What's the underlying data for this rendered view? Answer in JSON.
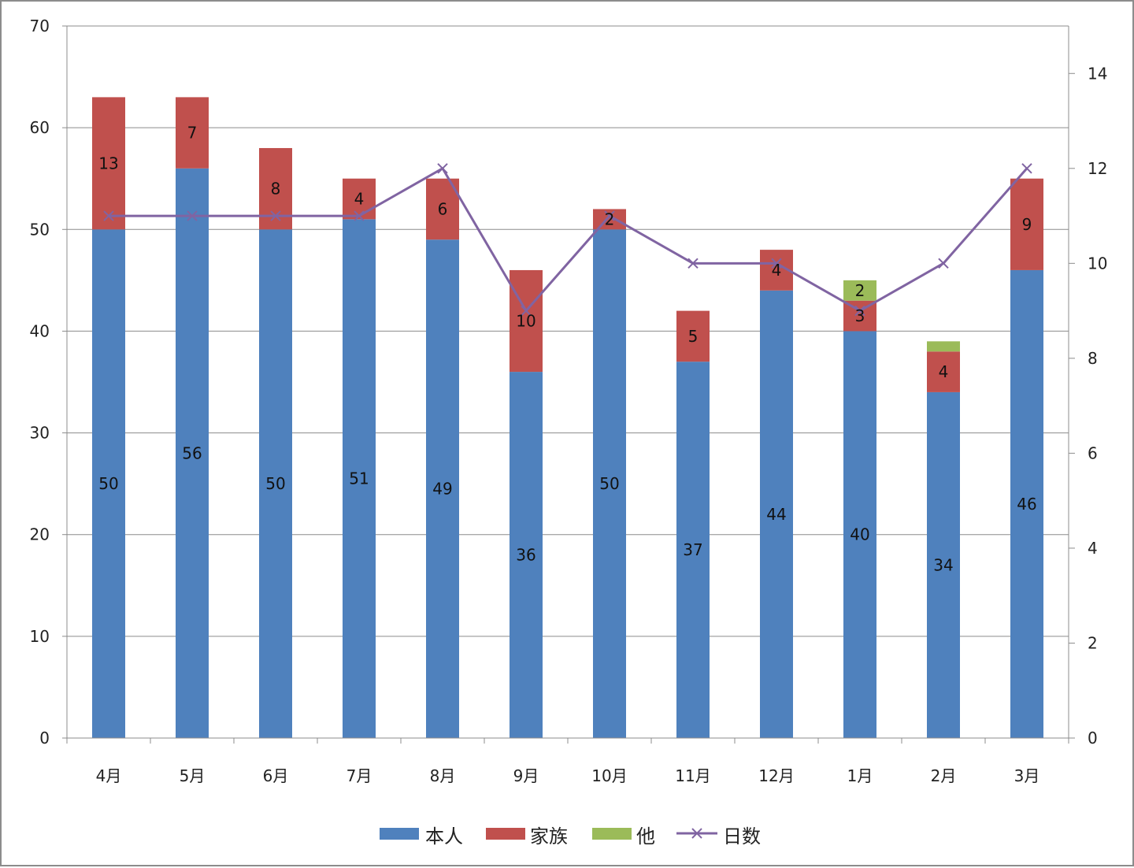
{
  "chart_data": {
    "type": "bar",
    "stacked": true,
    "categories": [
      "4月",
      "5月",
      "6月",
      "7月",
      "8月",
      "9月",
      "10月",
      "11月",
      "12月",
      "1月",
      "2月",
      "3月"
    ],
    "series": [
      {
        "name": "本人",
        "kind": "bar",
        "axis": "left",
        "color": "#4f81bd",
        "values": [
          50,
          56,
          50,
          51,
          49,
          36,
          50,
          37,
          44,
          40,
          34,
          46
        ],
        "labels": [
          "50",
          "56",
          "50",
          "51",
          "49",
          "36",
          "50",
          "37",
          "44",
          "40",
          "34",
          "46"
        ]
      },
      {
        "name": "家族",
        "kind": "bar",
        "axis": "left",
        "color": "#c0504d",
        "values": [
          13,
          7,
          8,
          4,
          6,
          10,
          2,
          5,
          4,
          3,
          4,
          9
        ],
        "labels": [
          "13",
          "7",
          "8",
          "4",
          "6",
          "10",
          "2",
          "5",
          "4",
          "3",
          "4",
          "9"
        ]
      },
      {
        "name": "他",
        "kind": "bar",
        "axis": "left",
        "color": "#9bbb59",
        "values": [
          0,
          0,
          0,
          0,
          0,
          0,
          0,
          0,
          0,
          2,
          1,
          0
        ],
        "labels": [
          "",
          "",
          "",
          "",
          "",
          "",
          "",
          "",
          "",
          "2",
          "",
          ""
        ]
      },
      {
        "name": "日数",
        "kind": "line",
        "axis": "right",
        "color": "#8064a2",
        "marker": "x",
        "values": [
          11,
          11,
          11,
          11,
          12,
          9,
          11,
          10,
          10,
          9,
          10,
          12
        ]
      }
    ],
    "y_left": {
      "min": 0,
      "max": 70,
      "ticks": [
        0,
        10,
        20,
        30,
        40,
        50,
        60,
        70
      ],
      "tick_labels": [
        "0",
        "10",
        "20",
        "30",
        "40",
        "50",
        "60",
        "70"
      ]
    },
    "y_right": {
      "min": 0,
      "max": 15,
      "ticks": [
        0,
        2,
        4,
        6,
        8,
        10,
        12,
        14
      ],
      "tick_labels": [
        "0",
        "2",
        "4",
        "6",
        "8",
        "10",
        "12",
        "14"
      ]
    },
    "grid": true,
    "legend_position": "bottom"
  }
}
